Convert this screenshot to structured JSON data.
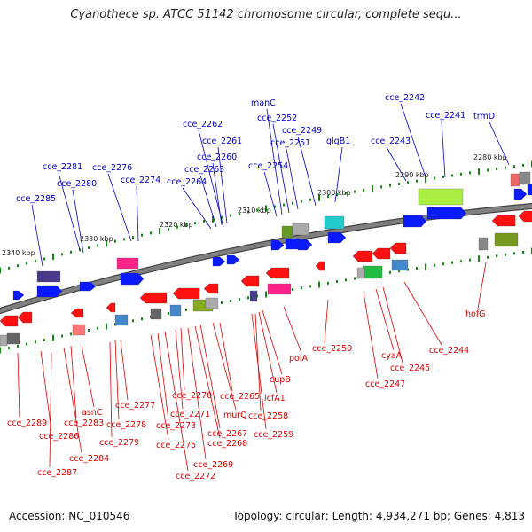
{
  "title": "Cyanothece sp. ATCC 51142 chromosome circular, complete sequ...",
  "footer": {
    "accession": "Accession: NC_010546",
    "summary": "Topology: circular; Length: 4,934,271 bp; Genes: 4,813"
  },
  "colors": {
    "upper_label": "#0000cc",
    "lower_label": "#dd0000",
    "backbone": "#808080",
    "tick": "#118811",
    "forward_gene": "#0a1aff",
    "reverse_gene": "#ff1111"
  },
  "scale_labels": [
    "2340 kbp",
    "2330 kbp",
    "2320 kbp",
    "2310 kbp",
    "2300 kbp",
    "2290 kbp",
    "2280 kbp"
  ],
  "upper_genes": [
    "cce_2285",
    "cce_2281",
    "cce_2280",
    "cce_2276",
    "cce_2274",
    "cce_2264",
    "cce_2263",
    "cce_2260",
    "cce_2261",
    "cce_2262",
    "cce_2254",
    "manC",
    "cce_2252",
    "cce_2251",
    "cce_2249",
    "glgB1",
    "cce_2243",
    "cce_2242",
    "cce_2241",
    "trmD"
  ],
  "lower_genes": [
    "cce_2289",
    "cce_2286",
    "cce_2287",
    "cce_2284",
    "cce_2283",
    "asnC",
    "cce_2279",
    "cce_2278",
    "cce_2277",
    "cce_2275",
    "cce_2273",
    "cce_2272",
    "cce_2271",
    "cce_2270",
    "cce_2269",
    "cce_2268",
    "cce_2267",
    "murQ",
    "cce_2265",
    "cce_2259",
    "cce_2258",
    "lcfA1",
    "cupB",
    "polA",
    "cce_2250",
    "cce_2247",
    "cyaA",
    "cce_2245",
    "cce_2244",
    "hofG"
  ]
}
